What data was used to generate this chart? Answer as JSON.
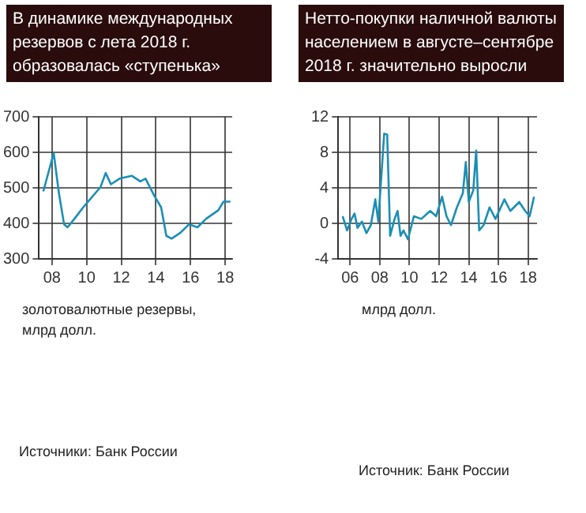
{
  "chart_data": [
    {
      "type": "line",
      "title": "В динамике международных резервов с лета 2018 г. образовалась «ступенька»",
      "annotations": [
        "золотовалютные резервы, млрд долл.",
        "Источники: Банк России"
      ],
      "x": [
        2007.5,
        2008.1,
        2008.4,
        2008.7,
        2008.9,
        2009.3,
        2009.8,
        2010.5,
        2010.8,
        2011.1,
        2011.4,
        2011.9,
        2012.6,
        2013.1,
        2013.4,
        2013.9,
        2014.3,
        2014.6,
        2014.9,
        2015.4,
        2015.9,
        2016.4,
        2016.9,
        2017.6,
        2017.9,
        2018.3
      ],
      "series": [
        {
          "color": "#1a8fb5",
          "values": [
            490,
            598,
            485,
            397,
            389,
            413,
            445,
            485,
            502,
            542,
            510,
            526,
            534,
            518,
            526,
            478,
            445,
            365,
            357,
            373,
            397,
            389,
            413,
            437,
            461,
            461
          ]
        }
      ],
      "xlim": [
        2007.25,
        2018.4
      ],
      "xticks": [
        {
          "value": 2008,
          "label": "08"
        },
        {
          "value": 2010,
          "label": "10"
        },
        {
          "value": 2012,
          "label": "12"
        },
        {
          "value": 2014,
          "label": "14"
        },
        {
          "value": 2016,
          "label": "16"
        },
        {
          "value": 2018,
          "label": "18"
        }
      ],
      "ylim": [
        300,
        700
      ],
      "yticks": [
        300,
        400,
        500,
        600,
        700
      ],
      "grid": true,
      "legend": false,
      "marker": "none",
      "line_style": "solid"
    },
    {
      "type": "line",
      "title": "Нетто-покупки наличной валюты населением в августе–сентябре 2018 г. значительно выросли",
      "annotations": [
        "млрд долл.",
        "Источник: Банк России"
      ],
      "x": [
        2005.5,
        2005.8,
        2006.1,
        2006.3,
        2006.5,
        2006.8,
        2007.1,
        2007.4,
        2007.7,
        2007.9,
        2008.3,
        2008.5,
        2008.7,
        2009.0,
        2009.2,
        2009.4,
        2009.6,
        2009.9,
        2010.3,
        2010.8,
        2011.4,
        2011.8,
        2012.2,
        2012.5,
        2012.8,
        2013.2,
        2013.6,
        2013.8,
        2014.0,
        2014.3,
        2014.5,
        2014.7,
        2015.0,
        2015.4,
        2015.8,
        2016.4,
        2016.8,
        2017.4,
        2017.8,
        2018.1,
        2018.4
      ],
      "series": [
        {
          "color": "#1a8fb5",
          "values": [
            0.8,
            -0.8,
            0.5,
            1.1,
            -0.5,
            0.2,
            -1.1,
            -0.2,
            2.7,
            0.2,
            10.1,
            10.0,
            -1.4,
            0.5,
            1.4,
            -1.4,
            -0.8,
            -1.8,
            0.8,
            0.5,
            1.4,
            0.8,
            3.0,
            0.8,
            -0.2,
            1.8,
            3.4,
            6.9,
            2.4,
            3.7,
            8.2,
            -0.8,
            -0.2,
            1.8,
            0.5,
            2.7,
            1.4,
            2.4,
            1.4,
            0.8,
            3.0
          ]
        }
      ],
      "xlim": [
        2005.2,
        2018.6
      ],
      "xticks": [
        {
          "value": 2006,
          "label": "06"
        },
        {
          "value": 2008,
          "label": "08"
        },
        {
          "value": 2010,
          "label": "10"
        },
        {
          "value": 2012,
          "label": "12"
        },
        {
          "value": 2014,
          "label": "14"
        },
        {
          "value": 2016,
          "label": "16"
        },
        {
          "value": 2018,
          "label": "18"
        }
      ],
      "ylim": [
        -4,
        12
      ],
      "yticks": [
        -4,
        0,
        4,
        8,
        12
      ],
      "grid": true,
      "legend": false,
      "marker": "none",
      "line_style": "solid"
    }
  ]
}
